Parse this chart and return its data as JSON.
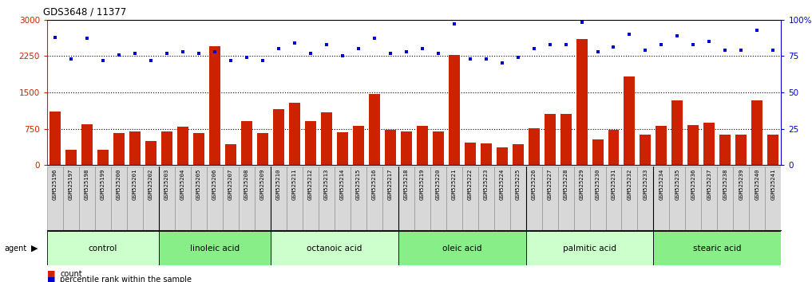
{
  "title": "GDS3648 / 11377",
  "samples": [
    "GSM525196",
    "GSM525197",
    "GSM525198",
    "GSM525199",
    "GSM525200",
    "GSM525201",
    "GSM525202",
    "GSM525203",
    "GSM525204",
    "GSM525205",
    "GSM525206",
    "GSM525207",
    "GSM525208",
    "GSM525209",
    "GSM525210",
    "GSM525211",
    "GSM525212",
    "GSM525213",
    "GSM525214",
    "GSM525215",
    "GSM525216",
    "GSM525217",
    "GSM525218",
    "GSM525219",
    "GSM525220",
    "GSM525221",
    "GSM525222",
    "GSM525223",
    "GSM525224",
    "GSM525225",
    "GSM525226",
    "GSM525227",
    "GSM525228",
    "GSM525229",
    "GSM525230",
    "GSM525231",
    "GSM525232",
    "GSM525233",
    "GSM525234",
    "GSM525235",
    "GSM525236",
    "GSM525237",
    "GSM525238",
    "GSM525239",
    "GSM525240",
    "GSM525241"
  ],
  "counts": [
    1100,
    310,
    840,
    310,
    660,
    700,
    490,
    700,
    790,
    660,
    2450,
    430,
    900,
    660,
    1150,
    1280,
    900,
    1080,
    680,
    800,
    1470,
    720,
    700,
    800,
    700,
    2270,
    470,
    450,
    370,
    430,
    760,
    1060,
    1060,
    2600,
    530,
    720,
    1820,
    620,
    800,
    1340,
    820,
    880,
    630,
    630,
    1340,
    620
  ],
  "percentiles": [
    88,
    73,
    87,
    72,
    76,
    77,
    72,
    77,
    78,
    77,
    78,
    72,
    74,
    72,
    80,
    84,
    77,
    83,
    75,
    80,
    87,
    77,
    78,
    80,
    77,
    97,
    73,
    73,
    70,
    74,
    80,
    83,
    83,
    98,
    78,
    81,
    90,
    79,
    83,
    89,
    83,
    85,
    79,
    79,
    93,
    79
  ],
  "groups": [
    {
      "label": "control",
      "start": 0,
      "end": 7
    },
    {
      "label": "linoleic acid",
      "start": 7,
      "end": 14
    },
    {
      "label": "octanoic acid",
      "start": 14,
      "end": 22
    },
    {
      "label": "oleic acid",
      "start": 22,
      "end": 30
    },
    {
      "label": "palmitic acid",
      "start": 30,
      "end": 38
    },
    {
      "label": "stearic acid",
      "start": 38,
      "end": 46
    }
  ],
  "group_colors": [
    "#ccffcc",
    "#88ee88",
    "#ccffcc",
    "#88ee88",
    "#ccffcc",
    "#88ee88"
  ],
  "bar_color": "#cc2200",
  "dot_color": "#0000cc",
  "left_ylim": [
    0,
    3000
  ],
  "right_ylim": [
    0,
    100
  ],
  "left_yticks": [
    0,
    750,
    1500,
    2250,
    3000
  ],
  "right_yticks": [
    0,
    25,
    50,
    75,
    100
  ],
  "grid_values": [
    750,
    1500,
    2250
  ],
  "tick_color_left": "#cc2200",
  "tick_color_right": "#0000cc",
  "sample_box_color": "#d8d8d8",
  "sample_box_border": "#888888"
}
